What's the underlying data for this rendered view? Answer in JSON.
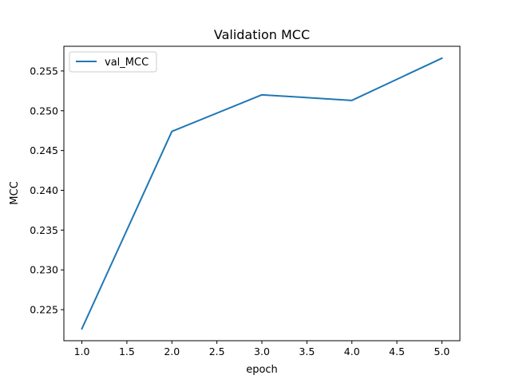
{
  "chart_data": {
    "type": "line",
    "title": "Validation MCC",
    "xlabel": "epoch",
    "ylabel": "MCC",
    "xlim": [
      0.8,
      5.2
    ],
    "ylim": [
      0.2211,
      0.2581
    ],
    "x_ticks": [
      "1.0",
      "1.5",
      "2.0",
      "2.5",
      "3.0",
      "3.5",
      "4.0",
      "4.5",
      "5.0"
    ],
    "y_ticks": [
      "0.225",
      "0.230",
      "0.235",
      "0.240",
      "0.245",
      "0.250",
      "0.255"
    ],
    "x_tick_values": [
      1.0,
      1.5,
      2.0,
      2.5,
      3.0,
      3.5,
      4.0,
      4.5,
      5.0
    ],
    "y_tick_values": [
      0.225,
      0.23,
      0.235,
      0.24,
      0.245,
      0.25,
      0.255
    ],
    "grid": false,
    "legend_position": "top-left",
    "series": [
      {
        "name": "val_MCC",
        "color": "#1f77b4",
        "x": [
          1,
          2,
          3,
          4,
          5
        ],
        "values": [
          0.2226,
          0.2474,
          0.252,
          0.2513,
          0.2566
        ]
      }
    ]
  }
}
